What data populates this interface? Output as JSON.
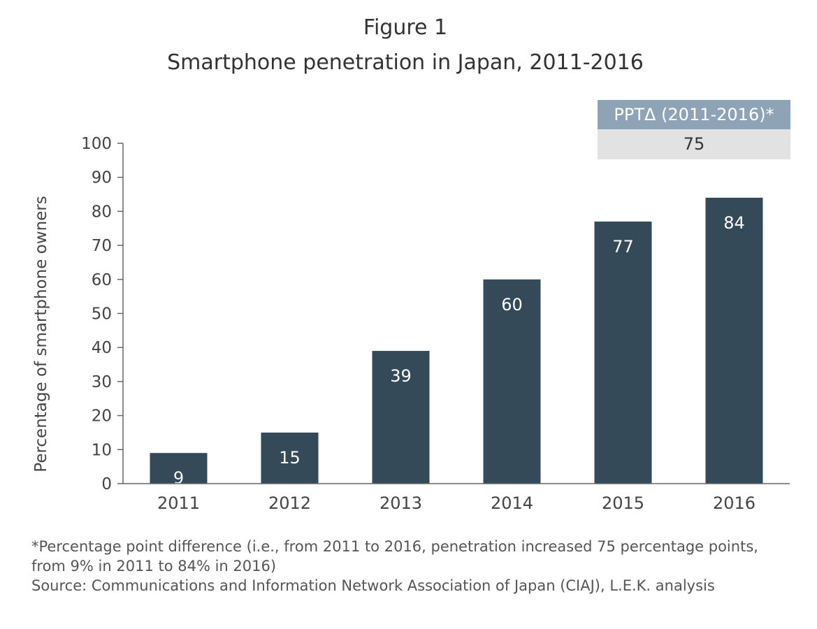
{
  "figure_label": "Figure 1",
  "title": "Smartphone penetration in Japan, 2011-2016",
  "ppt_box": {
    "header": "PPTΔ (2011-2016)*",
    "value": "75"
  },
  "chart_data": {
    "type": "bar",
    "categories": [
      "2011",
      "2012",
      "2013",
      "2014",
      "2015",
      "2016"
    ],
    "values": [
      9,
      15,
      39,
      60,
      77,
      84
    ],
    "data_labels": [
      "9",
      "15",
      "39",
      "60",
      "77",
      "84"
    ],
    "title": "Smartphone penetration in Japan, 2011-2016",
    "xlabel": "",
    "ylabel": "Percentage of smartphone owners",
    "ylim": [
      0,
      100
    ],
    "yticks": [
      "0",
      "10",
      "20",
      "30",
      "40",
      "50",
      "60",
      "70",
      "80",
      "90",
      "100"
    ],
    "grid": false,
    "bar_color": "#344a58",
    "label_color": "#ffffff"
  },
  "footnotes": {
    "line1": "*Percentage point difference (i.e., from 2011 to 2016, penetration increased 75 percentage points,",
    "line2": "from 9% in 2011 to 84% in 2016)",
    "source": "Source: Communications and Information Network Association of Japan (CIAJ), L.E.K. analysis"
  }
}
